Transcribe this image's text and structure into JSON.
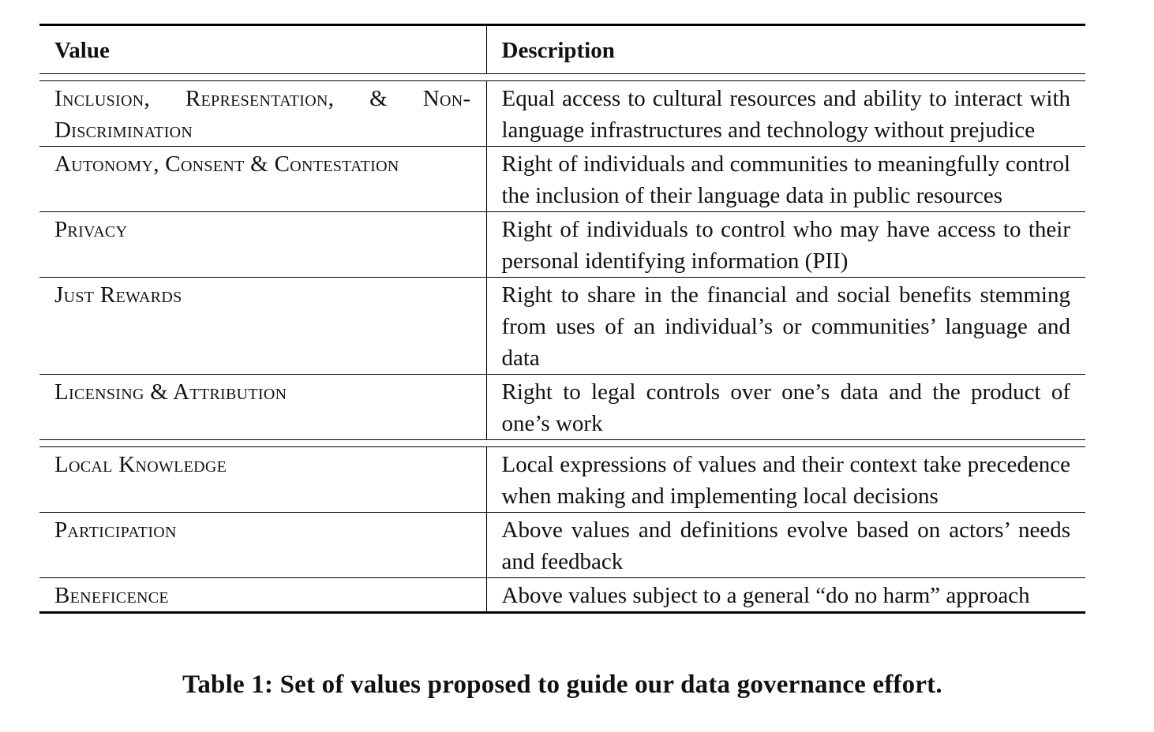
{
  "table": {
    "header": {
      "value": "Value",
      "description": "Description"
    },
    "group1": [
      {
        "value": "Inclusion, Representation, & Non-Discrimination",
        "description": "Equal access to cultural resources and ability to interact with language infrastructures and technology without prejudice"
      },
      {
        "value": "Autonomy, Consent & Contestation",
        "description": "Right of individuals and communities to meaningfully control the inclusion of their language data in public resources"
      },
      {
        "value": "Privacy",
        "description": "Right of individuals to control who may have access to their personal identifying information (PII)"
      },
      {
        "value": "Just Rewards",
        "description": "Right to share in the financial and social benefits stemming from uses of an individual’s or communities’ language and data"
      },
      {
        "value": "Licensing & Attribution",
        "description": "Right to legal controls over one’s data and the product of one’s work"
      }
    ],
    "group2": [
      {
        "value": "Local Knowledge",
        "description": "Local expressions of values and their context take precedence when making and implementing local decisions"
      },
      {
        "value": "Participation",
        "description": "Above values and definitions evolve based on actors’ needs and feedback"
      },
      {
        "value": "Beneficence",
        "description": "Above values subject to a general “do no harm” approach"
      }
    ]
  },
  "caption": "Table 1: Set of values proposed to guide our data governance effort."
}
